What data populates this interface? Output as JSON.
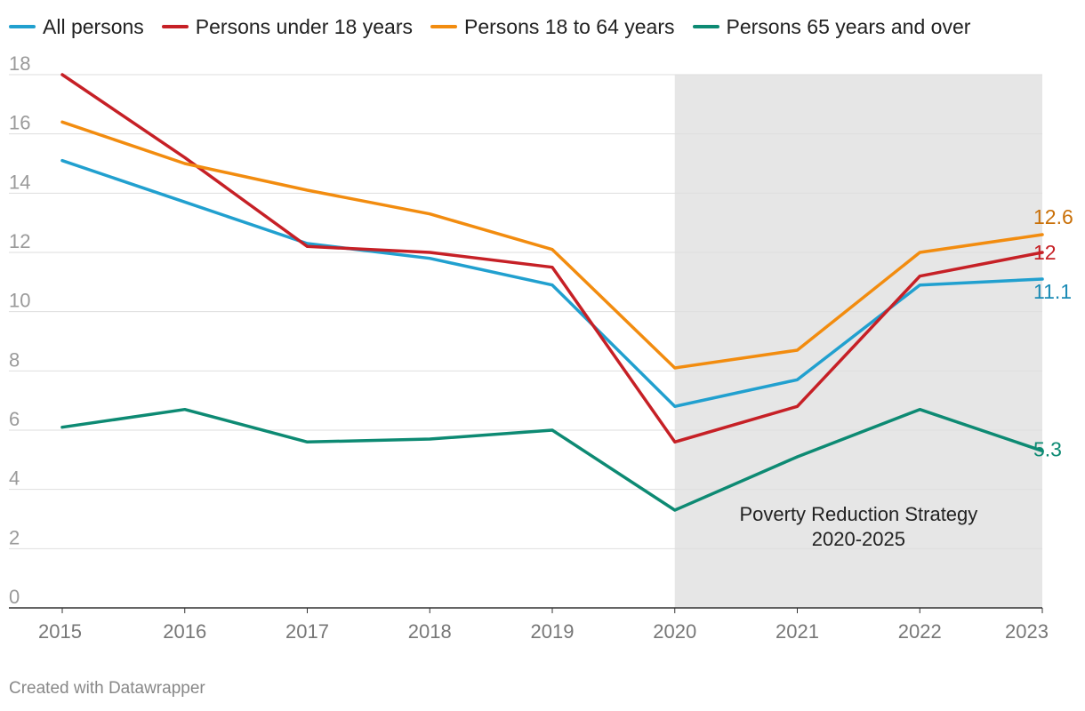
{
  "chart_data": {
    "type": "line",
    "x": [
      "2015",
      "2016",
      "2017",
      "2018",
      "2019",
      "2020",
      "2021",
      "2022",
      "2023"
    ],
    "ylim": [
      0,
      18
    ],
    "yticks": [
      0,
      2,
      4,
      6,
      8,
      10,
      12,
      14,
      16,
      18
    ],
    "series": [
      {
        "name": "All persons",
        "color": "#21a0cf",
        "label_color": "#1b8bb5",
        "values": [
          15.1,
          13.7,
          12.3,
          11.8,
          10.9,
          6.8,
          7.7,
          10.9,
          11.1
        ],
        "end_label": "11.1"
      },
      {
        "name": "Persons under 18 years",
        "color": "#c62026",
        "label_color": "#c62026",
        "values": [
          18.0,
          15.2,
          12.2,
          12.0,
          11.5,
          5.6,
          6.8,
          11.2,
          12.0
        ],
        "end_label": "12"
      },
      {
        "name": "Persons 18 to 64 years",
        "color": "#f28c0f",
        "label_color": "#c97008",
        "values": [
          16.4,
          15.0,
          14.1,
          13.3,
          12.1,
          8.1,
          8.7,
          12.0,
          12.6
        ],
        "end_label": "12.6"
      },
      {
        "name": "Persons 65 years and over",
        "color": "#0d8a73",
        "label_color": "#0d8a73",
        "values": [
          6.1,
          6.7,
          5.6,
          5.7,
          6.0,
          3.3,
          5.1,
          6.7,
          5.3
        ],
        "end_label": "5.3"
      }
    ],
    "shaded_region": {
      "from": "2020",
      "to": "2023",
      "label_line1": "Poverty Reduction Strategy",
      "label_line2": "2020-2025"
    }
  },
  "footer": "Created with Datawrapper"
}
